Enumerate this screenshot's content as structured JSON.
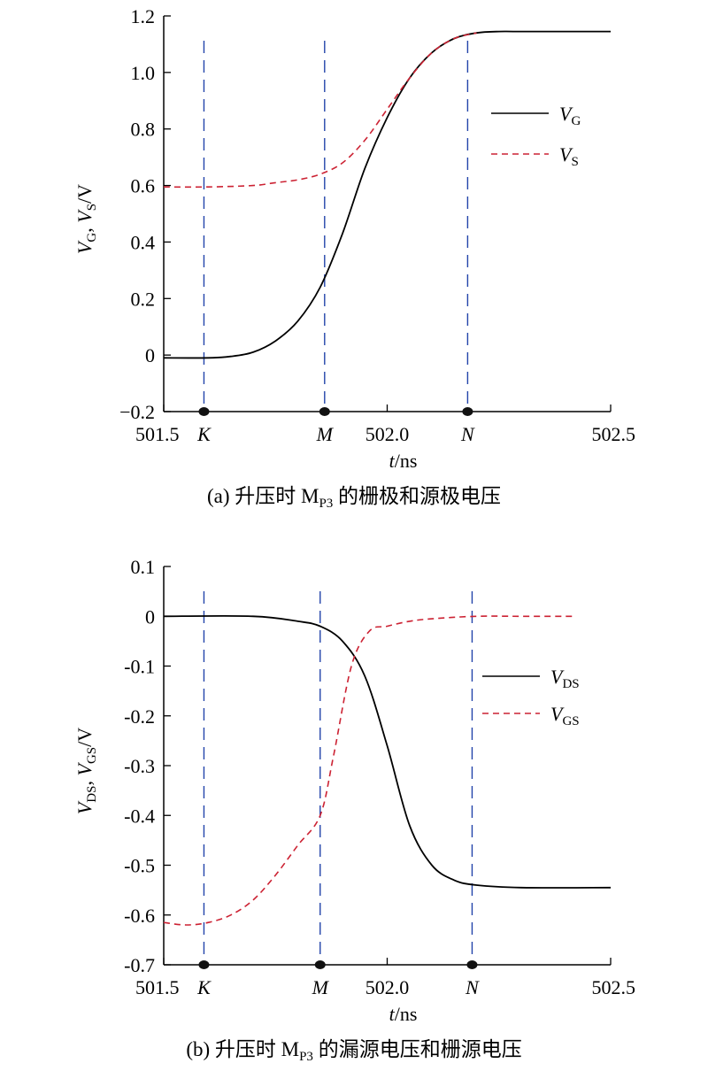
{
  "figure": {
    "background": "#ffffff",
    "colors": {
      "solid": "#000000",
      "dashed": "#cc2233",
      "marker": "#2244aa"
    }
  },
  "chart_data": [
    {
      "type": "line",
      "panel": "a",
      "caption": {
        "prefix": "(a) 升压时 M",
        "sub": "P3",
        "suffix": " 的栅极和源极电压"
      },
      "xlabel": {
        "var": "t",
        "unit": "/ns"
      },
      "ylabel": {
        "parts": [
          [
            "V",
            ""
          ],
          [
            "G",
            "sub"
          ],
          [
            ", ",
            ""
          ],
          [
            "V",
            ""
          ],
          [
            "S",
            "sub"
          ],
          [
            "/V",
            ""
          ]
        ]
      },
      "xlim": [
        501.5,
        502.5
      ],
      "ylim": [
        -0.2,
        1.2
      ],
      "xticks": [
        {
          "v": 501.5,
          "label": "501.5"
        },
        {
          "v": 502.0,
          "label": "502.0"
        },
        {
          "v": 502.5,
          "label": "502.5"
        }
      ],
      "yticks": [
        {
          "v": -0.2,
          "label": "−0.2"
        },
        {
          "v": 0,
          "label": "0"
        },
        {
          "v": 0.2,
          "label": "0.2"
        },
        {
          "v": 0.4,
          "label": "0.4"
        },
        {
          "v": 0.6,
          "label": "0.6"
        },
        {
          "v": 0.8,
          "label": "0.8"
        },
        {
          "v": 1.0,
          "label": "1.0"
        },
        {
          "v": 1.2,
          "label": "1.2"
        }
      ],
      "markers": [
        {
          "label": "K",
          "x": 501.59
        },
        {
          "label": "M",
          "x": 501.86
        },
        {
          "label": "N",
          "x": 502.18
        }
      ],
      "legend_position": "right",
      "series": [
        {
          "name": "V",
          "sub": "G",
          "style": "solid",
          "x": [
            501.5,
            501.6,
            501.65,
            501.7,
            501.75,
            501.8,
            501.85,
            501.9,
            501.95,
            502.0,
            502.05,
            502.1,
            502.15,
            502.2,
            502.25,
            502.3,
            502.5
          ],
          "y": [
            -0.01,
            -0.01,
            -0.005,
            0.01,
            0.05,
            0.12,
            0.24,
            0.43,
            0.66,
            0.84,
            0.98,
            1.07,
            1.12,
            1.14,
            1.145,
            1.145,
            1.145
          ]
        },
        {
          "name": "V",
          "sub": "S",
          "style": "dashed",
          "x": [
            501.5,
            501.6,
            501.7,
            501.75,
            501.8,
            501.85,
            501.9,
            501.95,
            502.0,
            502.05,
            502.1,
            502.15,
            502.2
          ],
          "y": [
            0.595,
            0.595,
            0.6,
            0.61,
            0.62,
            0.64,
            0.68,
            0.76,
            0.87,
            0.98,
            1.07,
            1.12,
            1.14
          ]
        }
      ]
    },
    {
      "type": "line",
      "panel": "b",
      "caption": {
        "prefix": "(b) 升压时 M",
        "sub": "P3",
        "suffix": " 的漏源电压和栅源电压"
      },
      "xlabel": {
        "var": "t",
        "unit": "/ns"
      },
      "ylabel": {
        "parts": [
          [
            "V",
            ""
          ],
          [
            "DS",
            "sub"
          ],
          [
            ", ",
            ""
          ],
          [
            "V",
            ""
          ],
          [
            "GS",
            "sub"
          ],
          [
            "/V",
            ""
          ]
        ]
      },
      "xlim": [
        501.5,
        502.5
      ],
      "ylim": [
        -0.7,
        0.1
      ],
      "xticks": [
        {
          "v": 501.5,
          "label": "501.5"
        },
        {
          "v": 502.0,
          "label": "502.0"
        },
        {
          "v": 502.5,
          "label": "502.5"
        }
      ],
      "yticks": [
        {
          "v": -0.7,
          "label": "-0.7"
        },
        {
          "v": -0.6,
          "label": "-0.6"
        },
        {
          "v": -0.5,
          "label": "-0.5"
        },
        {
          "v": -0.4,
          "label": "-0.4"
        },
        {
          "v": -0.3,
          "label": "-0.3"
        },
        {
          "v": -0.2,
          "label": "-0.2"
        },
        {
          "v": -0.1,
          "label": "-0.1"
        },
        {
          "v": 0,
          "label": "0"
        },
        {
          "v": 0.1,
          "label": "0.1"
        }
      ],
      "markers": [
        {
          "label": "K",
          "x": 501.59
        },
        {
          "label": "M",
          "x": 501.85
        },
        {
          "label": "N",
          "x": 502.19
        }
      ],
      "legend_position": "right",
      "series": [
        {
          "name": "V",
          "sub": "DS",
          "style": "solid",
          "x": [
            501.5,
            501.7,
            501.8,
            501.85,
            501.9,
            501.95,
            502.0,
            502.05,
            502.1,
            502.15,
            502.2,
            502.3,
            502.5
          ],
          "y": [
            0.0,
            0.0,
            -0.01,
            -0.02,
            -0.05,
            -0.12,
            -0.26,
            -0.42,
            -0.5,
            -0.53,
            -0.54,
            -0.545,
            -0.545
          ]
        },
        {
          "name": "V",
          "sub": "GS",
          "style": "dashed",
          "x": [
            501.5,
            501.55,
            501.6,
            501.65,
            501.7,
            501.75,
            501.8,
            501.85,
            501.88,
            501.92,
            501.96,
            502.0,
            502.05,
            502.1,
            502.2,
            502.3,
            502.42
          ],
          "y": [
            -0.615,
            -0.62,
            -0.615,
            -0.6,
            -0.57,
            -0.52,
            -0.46,
            -0.4,
            -0.28,
            -0.1,
            -0.03,
            -0.02,
            -0.01,
            -0.005,
            0.0,
            0.0,
            0.0
          ]
        }
      ]
    }
  ]
}
